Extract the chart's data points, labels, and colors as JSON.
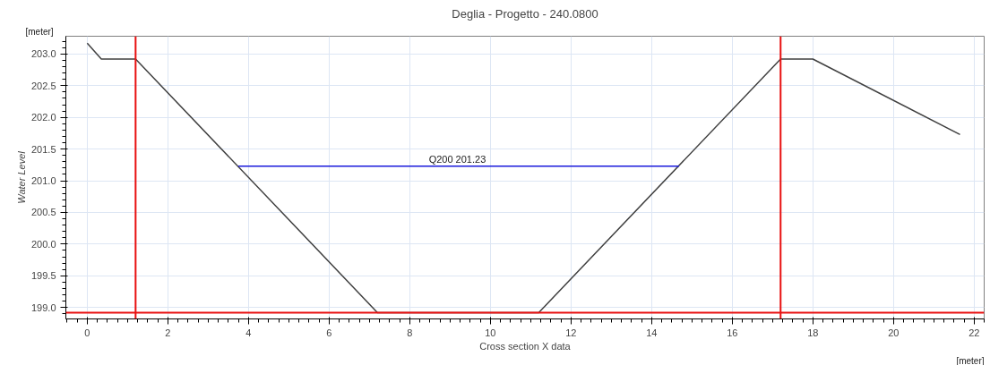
{
  "chart_data": {
    "type": "line",
    "title": "Deglia - Progetto - 240.0800",
    "xlabel": "Cross section X data",
    "ylabel": "Water Level",
    "annotations": [
      "[meter]",
      "[meter]"
    ],
    "x": [
      0,
      0.35,
      1.2,
      7.2,
      11.2,
      17.2,
      18.0,
      21.65
    ],
    "series": [
      {
        "color": "#404040",
        "values": [
          203.17,
          202.92,
          202.92,
          198.92,
          198.92,
          202.92,
          202.92,
          201.73
        ]
      },
      {
        "name": "Q200  201.23",
        "color": "#1a1adc",
        "x": [
          3.75,
          14.68
        ],
        "values": [
          201.23,
          201.23
        ]
      }
    ],
    "ref_lines": [
      {
        "axis": "x",
        "value": 1.2,
        "color": "#e81010"
      },
      {
        "axis": "x",
        "value": 17.2,
        "color": "#e81010"
      },
      {
        "axis": "y",
        "value": 198.92,
        "color": "#e81010"
      }
    ],
    "xlim": [
      -0.53,
      22.25
    ],
    "ylim": [
      198.82,
      203.28
    ],
    "xticks": [
      0,
      2,
      4,
      6,
      8,
      10,
      12,
      14,
      16,
      18,
      20,
      22
    ],
    "yticks": [
      {
        "value": 199,
        "label": "199.0"
      },
      {
        "value": 199.5,
        "label": "199.5"
      },
      {
        "value": 200,
        "label": "200.0"
      },
      {
        "value": 200.5,
        "label": "200.5"
      },
      {
        "value": 201,
        "label": "201.0"
      },
      {
        "value": 201.5,
        "label": "201.5"
      },
      {
        "value": 202,
        "label": "202.0"
      },
      {
        "value": 202.5,
        "label": "202.5"
      },
      {
        "value": 203,
        "label": "203.0"
      }
    ],
    "grid": true,
    "marker": "none",
    "line_style": "solid"
  }
}
